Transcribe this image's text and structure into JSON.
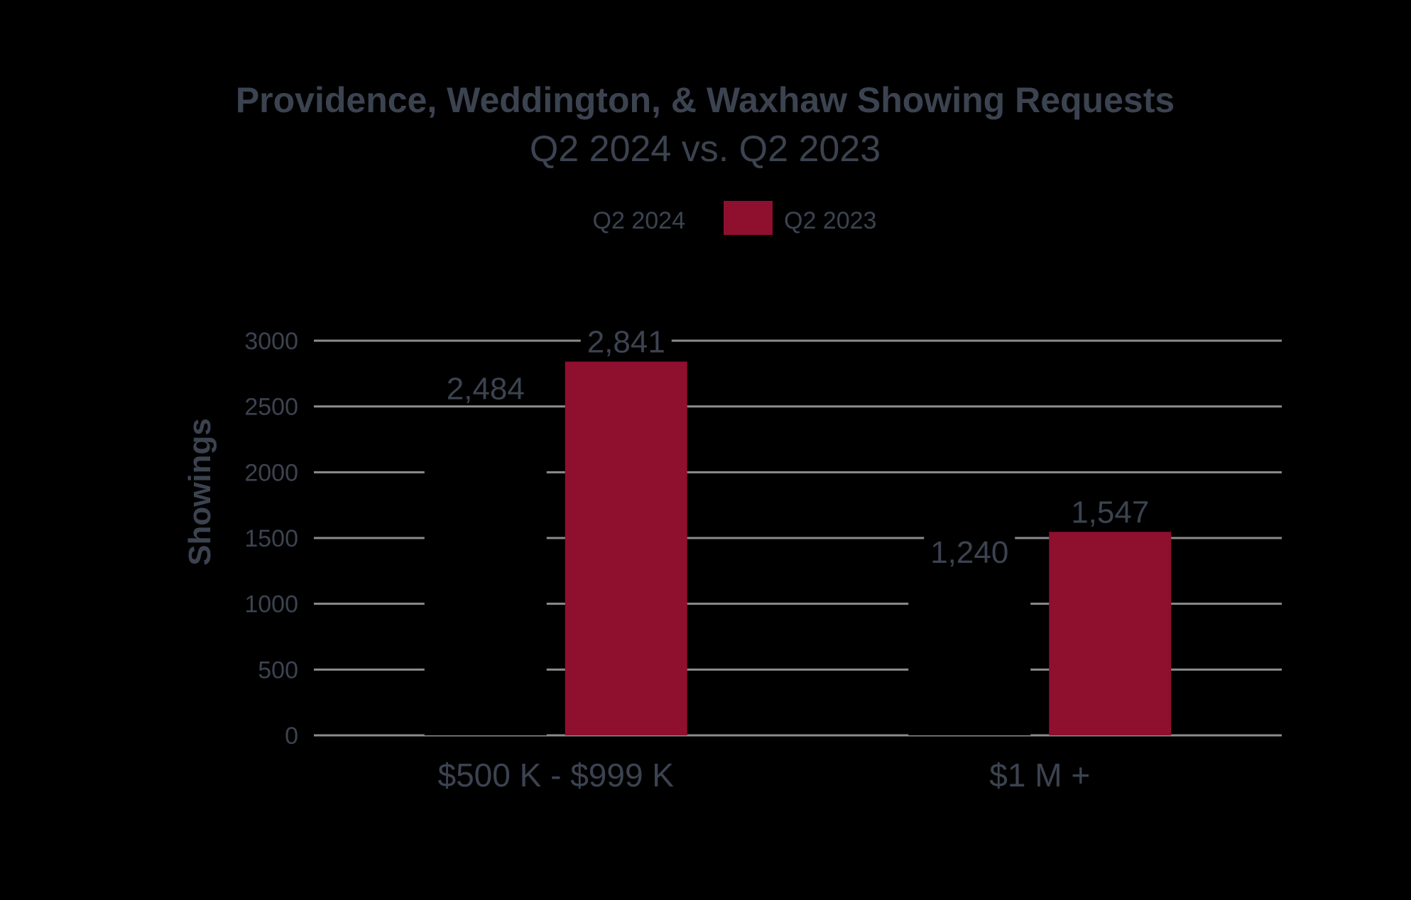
{
  "chart_data": {
    "type": "bar",
    "title": "Providence, Weddington, & Waxhaw Showing Requests",
    "subtitle": "Q2 2024 vs. Q2 2023",
    "xlabel": "",
    "ylabel": "Showings",
    "categories": [
      "$500 K - $999 K",
      "$1 M +"
    ],
    "series": [
      {
        "name": "Q2 2024",
        "values": [
          2484,
          1240
        ],
        "labels": [
          "2,484",
          "1,240"
        ],
        "color": "#000000"
      },
      {
        "name": "Q2 2023",
        "values": [
          2841,
          1547
        ],
        "labels": [
          "2,841",
          "1,547"
        ],
        "color": "#8f0f2e"
      }
    ],
    "ylim": [
      0,
      3000
    ],
    "yticks": [
      0,
      500,
      1000,
      1500,
      2000,
      2500,
      3000
    ],
    "grid": true,
    "legend": "top-center",
    "colors": {
      "background": "#000000",
      "text": "#3c4350",
      "grid": "#8c8c8c"
    }
  }
}
